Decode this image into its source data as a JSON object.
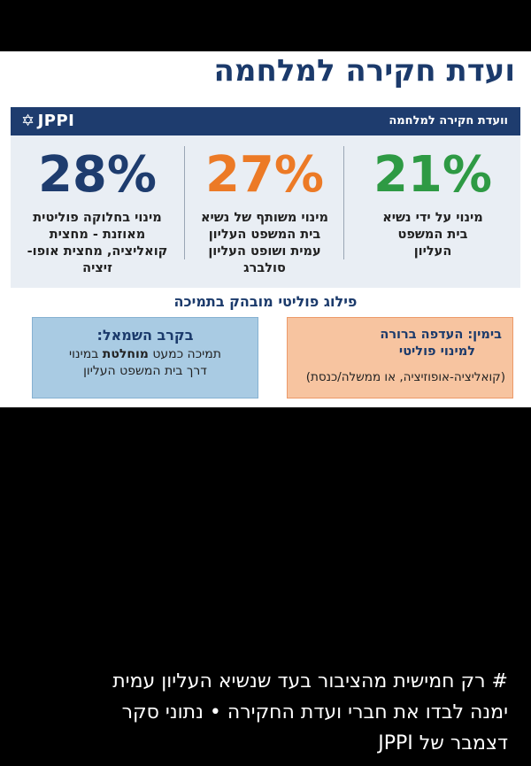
{
  "card": {
    "headline": "ועדת חקירה למלחמה",
    "banner": {
      "logo_text": "JPPI",
      "logo_icon": "star-of-david-icon",
      "title": "וועדת חקירה למלחמה"
    },
    "stats": [
      {
        "value": "21%",
        "color": "#2e9a44",
        "lines": [
          "מינוי על ידי נשיא",
          "בית המשפט",
          "העליון"
        ]
      },
      {
        "value": "27%",
        "color": "#ec7a26",
        "lines": [
          "מינוי משותף של נשיא",
          "בית המשפט העליון",
          "עמית ושופט העליון",
          "סולברג"
        ]
      },
      {
        "value": "28%",
        "color": "#1e3c6e",
        "lines": [
          "מינוי בחלוקה פוליטית",
          "מאוזנת - מחצית",
          "קואליציה, מחצית אופו-",
          "זיציה"
        ]
      }
    ],
    "split": {
      "title": "פילוג פוליטי מובהק בתמיכה",
      "right_box": {
        "line1": "בימין: העדפה ברורה",
        "line2": "למינוי פוליטי",
        "line3": "(קואליציה-אופוזיציה, או ממשלה/כנסת)"
      },
      "left_box": {
        "title": "בקרב השמאל:",
        "line2_pre": "תמיכה כמעט ",
        "line2_bold": "מוחלטת",
        "line2_post": " במינוי",
        "line3": "דרך בית המשפט העליון"
      }
    }
  },
  "caption": {
    "lines": [
      "# רק חמישית מהציבור בעד שנשיא העליון עמית",
      "ימנה לבדו את חברי ועדת החקירה • נתוני סקר",
      "דצמבר של JPPI"
    ]
  }
}
